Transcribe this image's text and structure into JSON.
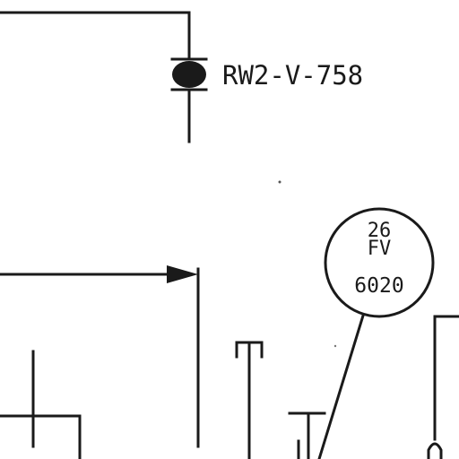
{
  "valve": {
    "tag": "RW2-V-758"
  },
  "instrument": {
    "number": "26",
    "type": "FV",
    "loop": "6020"
  },
  "colors": {
    "ink": "#1a1a1a",
    "paper": "#ffffff"
  }
}
